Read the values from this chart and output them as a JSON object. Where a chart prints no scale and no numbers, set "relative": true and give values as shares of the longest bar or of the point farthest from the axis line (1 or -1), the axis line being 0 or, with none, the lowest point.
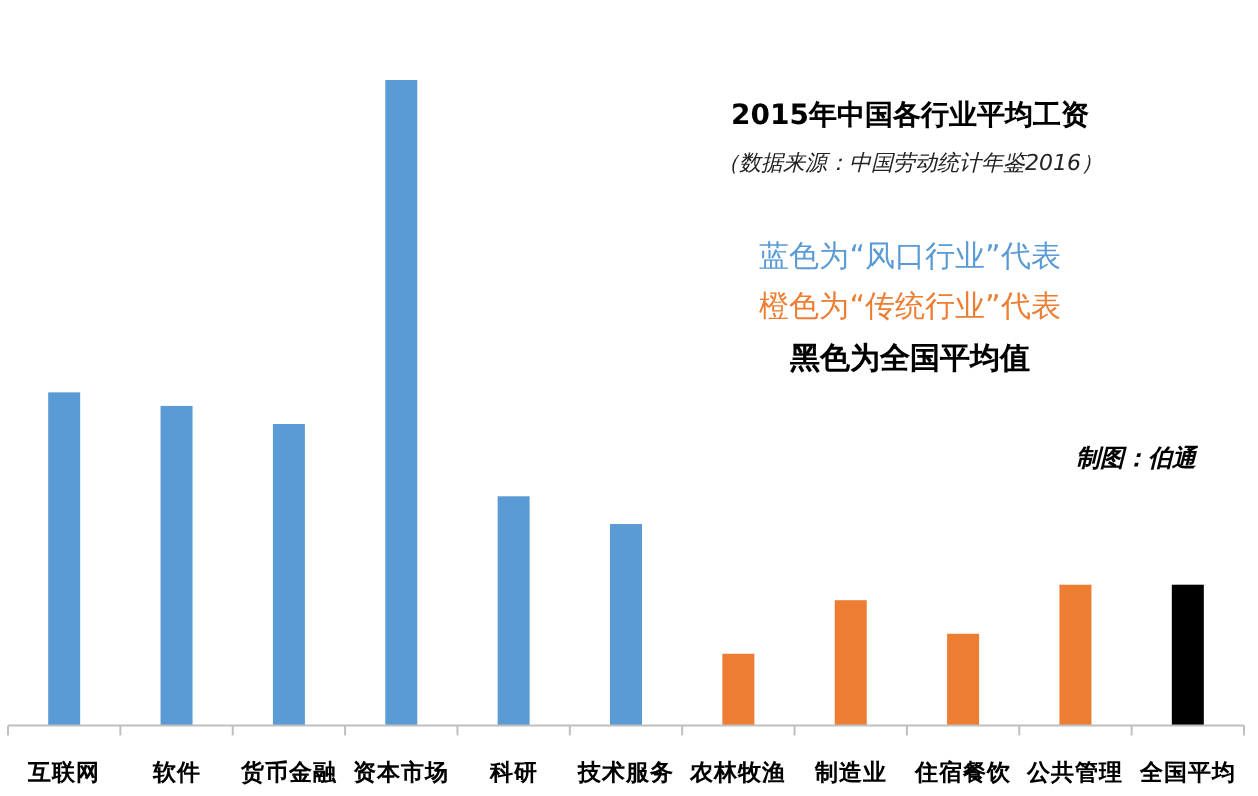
{
  "chart_data": {
    "type": "bar",
    "relative": true,
    "title": "2015年中国各行业平均工资",
    "subtitle": "（数据来源：中国劳动统计年鉴2016）",
    "categories": [
      "互联网",
      "软件",
      "货币金融",
      "资本市场",
      "科研",
      "技术服务",
      "农林牧渔",
      "制造业",
      "住宿餐饮",
      "公共管理",
      "全国平均"
    ],
    "values": [
      0.516,
      0.495,
      0.467,
      1,
      0.355,
      0.312,
      0.111,
      0.194,
      0.142,
      0.218,
      0.218
    ],
    "colors": [
      "#5b9bd5",
      "#5b9bd5",
      "#5b9bd5",
      "#5b9bd5",
      "#5b9bd5",
      "#5b9bd5",
      "#ed7d31",
      "#ed7d31",
      "#ed7d31",
      "#ed7d31",
      "#000000"
    ],
    "annotations": [
      "蓝色为“风口行业”代表",
      "橙色为“传统行业”代表",
      "黑色为全国平均值",
      "制图：伯通"
    ]
  }
}
